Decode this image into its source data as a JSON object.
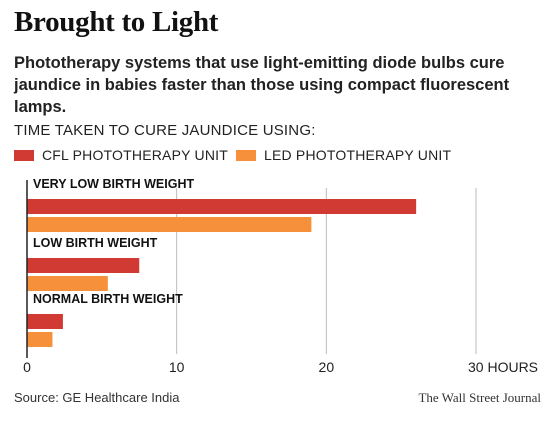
{
  "title": "Brought to Light",
  "subtitle": "Phototherapy systems that use light-emitting diode bulbs cure jaundice in babies faster than those using compact fluorescent lamps.",
  "chart_heading": "TIME TAKEN TO CURE JAUNDICE USING:",
  "source": "Source: GE Healthcare India",
  "credit": "The Wall Street Journal",
  "colors": {
    "cfl": "#d03a32",
    "led": "#f7903a",
    "grid": "#bbbbbb",
    "axis": "#222222"
  },
  "chart_data": {
    "type": "bar",
    "orientation": "horizontal",
    "categories": [
      "VERY LOW BIRTH WEIGHT",
      "LOW BIRTH WEIGHT",
      "NORMAL BIRTH WEIGHT"
    ],
    "series": [
      {
        "name": "CFL PHOTOTHERAPY UNIT",
        "values": [
          26,
          7.5,
          2.4
        ]
      },
      {
        "name": "LED PHOTOTHERAPY UNIT",
        "values": [
          19,
          5.4,
          1.7
        ]
      }
    ],
    "xlim": [
      0,
      30
    ],
    "xticks": [
      0,
      10,
      20,
      30
    ],
    "xtick_labels": [
      "0",
      "10",
      "20",
      "30 HOURS"
    ],
    "grid": true,
    "legend_position": "top-left"
  }
}
